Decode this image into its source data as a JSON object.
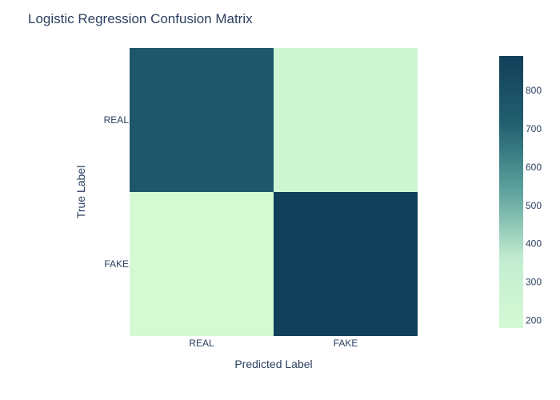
{
  "chart_data": {
    "type": "heatmap",
    "title": "Logistic Regression Confusion Matrix",
    "xlabel": "Predicted Label",
    "ylabel": "True Label",
    "x_categories": [
      "REAL",
      "FAKE"
    ],
    "y_categories": [
      "REAL",
      "FAKE"
    ],
    "values": [
      [
        760,
        240
      ],
      [
        180,
        890
      ]
    ],
    "colorscale": [
      "#d4fad4",
      "#c3edd1",
      "#5fa39e",
      "#226070",
      "#123f5a"
    ],
    "colorbar": {
      "min": 180,
      "max": 890,
      "ticks": [
        200,
        300,
        400,
        500,
        600,
        700,
        800
      ]
    }
  }
}
